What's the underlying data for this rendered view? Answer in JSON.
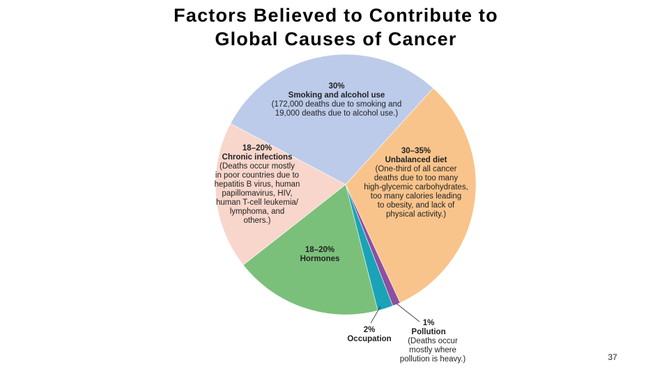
{
  "chart_data": {
    "type": "pie",
    "title": [
      "Factors Believed to Contribute to",
      "Global Causes of Cancer"
    ],
    "categories": [
      "Smoking and alcohol use",
      "Unbalanced diet",
      "Pollution",
      "Occupation",
      "Hormones",
      "Chronic infections"
    ],
    "values": [
      30,
      32.5,
      1,
      2,
      19,
      19
    ],
    "value_labels": [
      "30%",
      "30–35%",
      "1%",
      "2%",
      "18–20%",
      "18–20%"
    ],
    "colors": [
      "#bccbe9",
      "#f9c48b",
      "#8e4f9f",
      "#1aa3b6",
      "#7bc07a",
      "#f8d6cb"
    ],
    "descriptions": [
      [
        "(172,000 deaths due to smoking and",
        "19,000 deaths due to alcohol use.)"
      ],
      [
        "(One-third of all cancer",
        "deaths due to too many",
        "high-glycemic carbohydrates,",
        "too many calories leading",
        "to obesity, and lack of",
        "physical activity.)"
      ],
      [
        "(Deaths occur",
        "mostly where",
        "pollution is heavy.)"
      ],
      [],
      [],
      [
        "(Deaths occur mostly",
        "in poor countries due to",
        "hepatitis B virus, human",
        "papillomavirus, HIV,",
        "human T-cell leukemia/",
        "lymphoma, and",
        "others.)"
      ]
    ]
  },
  "slide": {
    "page_number": "37"
  }
}
